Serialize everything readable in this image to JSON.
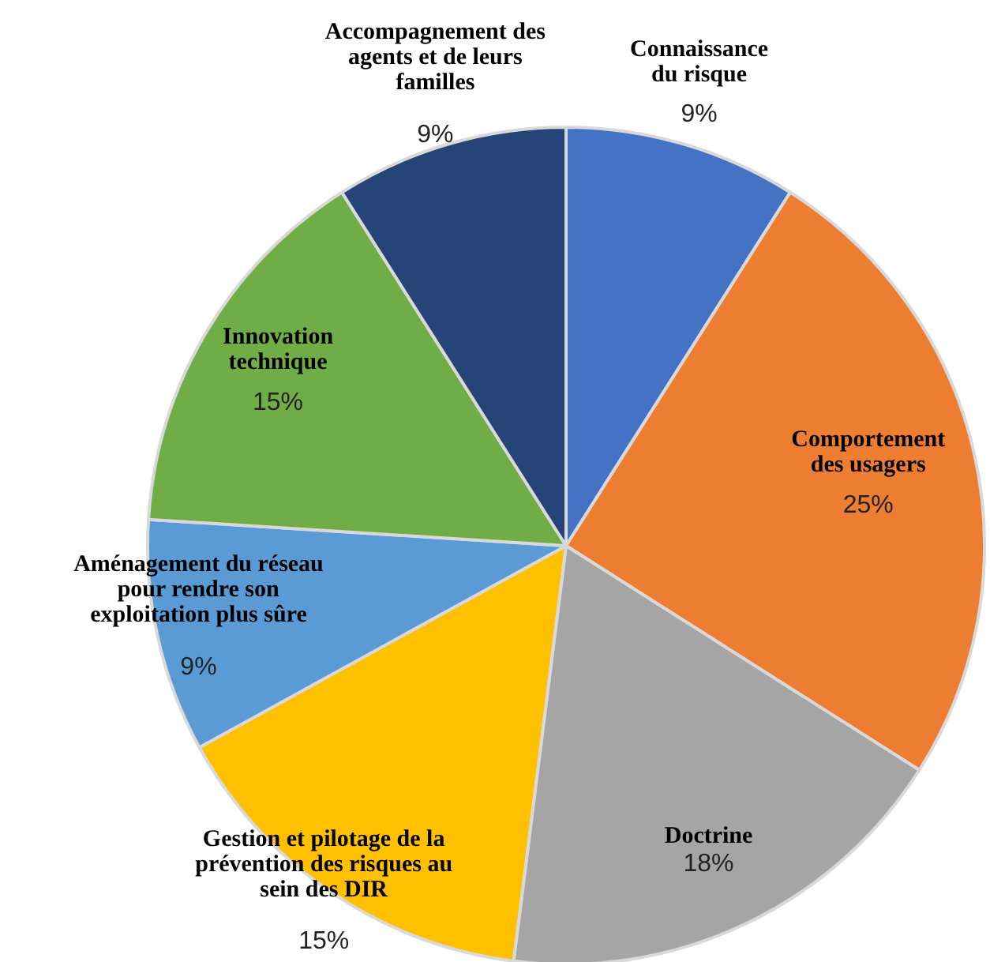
{
  "chart_data": {
    "type": "pie",
    "categories": [
      "Connaissance du risque",
      "Comportement des usagers",
      "Doctrine",
      "Gestion et pilotage de la prévention des risques au sein des DIR",
      "Aménagement du réseau pour rendre son exploitation plus sûre",
      "Innovation technique",
      "Accompagnement des agents et de leurs familles"
    ],
    "values": [
      9,
      25,
      18,
      15,
      9,
      15,
      9
    ],
    "value_labels": [
      "9%",
      "25%",
      "18%",
      "15%",
      "9%",
      "15%",
      "9%"
    ],
    "colors": [
      "#4472c4",
      "#ed7d31",
      "#a5a5a5",
      "#ffc000",
      "#5b9bd5",
      "#70ad47",
      "#264478"
    ]
  }
}
